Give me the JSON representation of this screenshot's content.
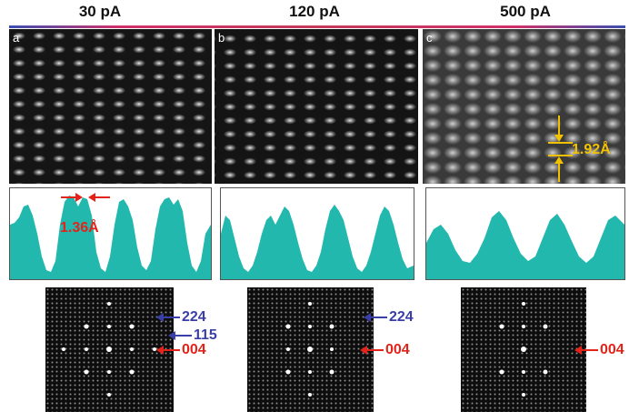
{
  "columns": [
    {
      "current": "30 pA",
      "letter": "a"
    },
    {
      "current": "120 pA",
      "letter": "b"
    },
    {
      "current": "500 pA",
      "letter": "c"
    }
  ],
  "annotations": {
    "spacing_a": "1.36Å",
    "spacing_c": "1.92Å"
  },
  "fft_labels": {
    "a": [
      "224",
      "115",
      "004"
    ],
    "b": [
      "224",
      "004"
    ],
    "c": [
      "004"
    ]
  },
  "colors": {
    "profile_fill": "#22b8ae",
    "red_arrow": "#e2231a",
    "blue_arrow": "#3a3fa8",
    "yellow_marker": "#f2c200"
  }
}
